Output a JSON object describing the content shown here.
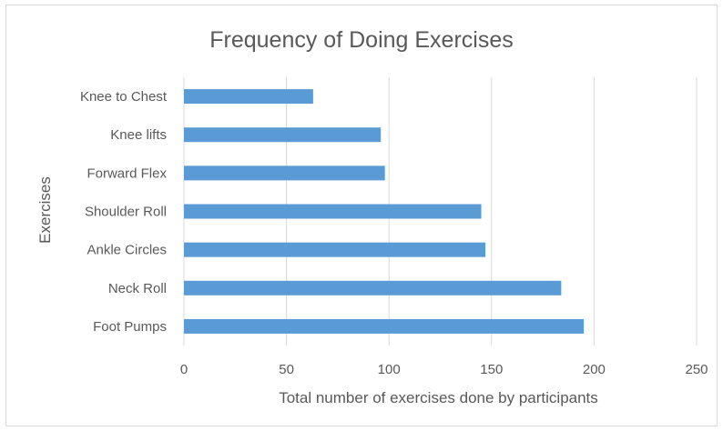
{
  "chart_data": {
    "type": "bar",
    "orientation": "horizontal",
    "title": "Frequency of Doing Exercises",
    "xlabel": "Total number of exercises done by participants",
    "ylabel": "Exercises",
    "categories": [
      "Knee to Chest",
      "Knee lifts",
      "Forward Flex",
      "Shoulder Roll",
      "Ankle Circles",
      "Neck Roll",
      "Foot Pumps"
    ],
    "values": [
      63,
      96,
      98,
      145,
      147,
      184,
      195
    ],
    "xlim": [
      0,
      250
    ],
    "xticks": [
      "0",
      "50",
      "100",
      "150",
      "200",
      "250"
    ],
    "grid": "vertical",
    "legend": "none",
    "bar_color": "#5b9bd5",
    "grid_color": "#d9d9d9",
    "text_color": "#595959"
  }
}
